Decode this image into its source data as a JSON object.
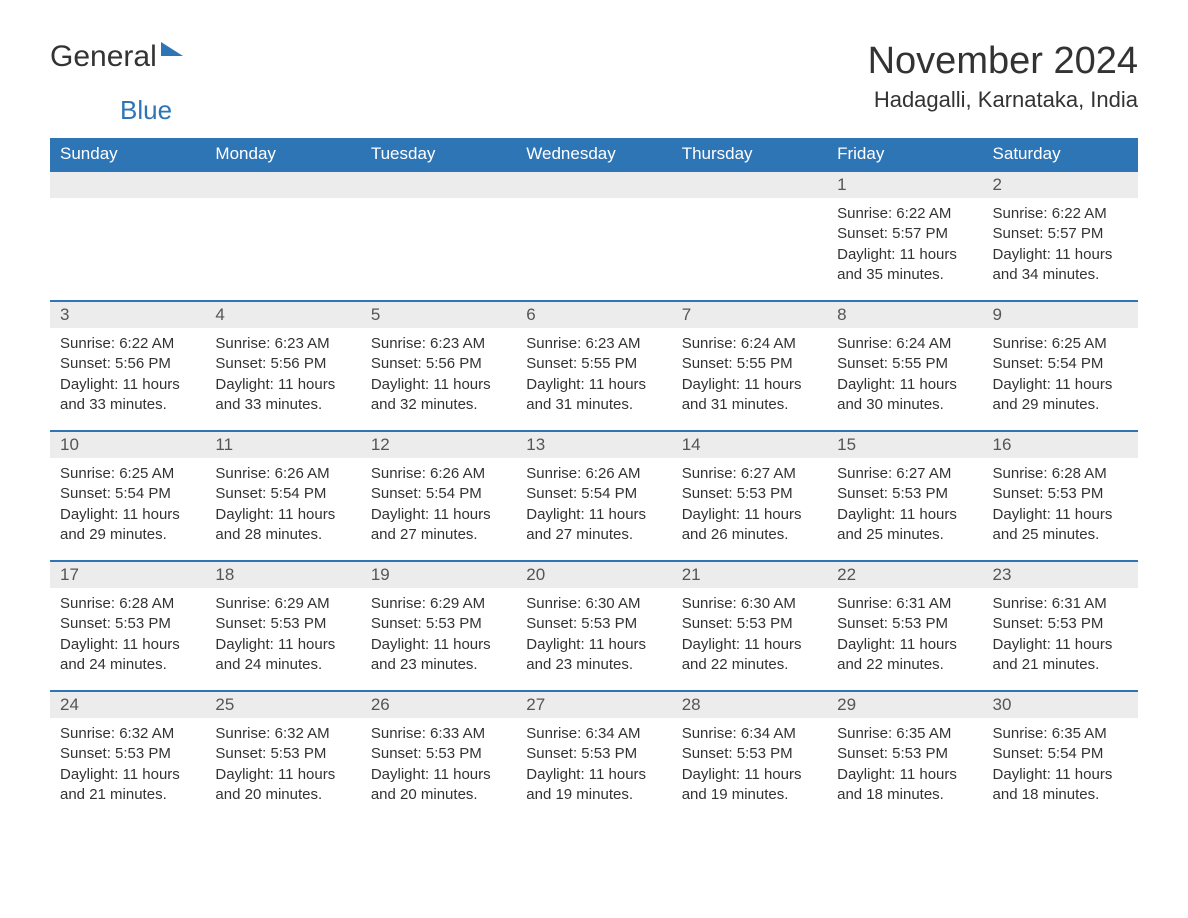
{
  "branding": {
    "logo_text_1": "General",
    "logo_text_2": "Blue"
  },
  "header": {
    "month_title": "November 2024",
    "location": "Hadagalli, Karnataka, India"
  },
  "styling": {
    "header_bg": "#2e75b6",
    "header_text": "#ffffff",
    "day_header_bg": "#ececec",
    "day_border_top": "#2e75b6",
    "body_bg": "#ffffff",
    "text_color": "#333333",
    "month_title_fontsize": 38,
    "location_fontsize": 22,
    "weekday_fontsize": 17,
    "day_number_fontsize": 17,
    "content_fontsize": 15
  },
  "weekdays": [
    "Sunday",
    "Monday",
    "Tuesday",
    "Wednesday",
    "Thursday",
    "Friday",
    "Saturday"
  ],
  "weeks": [
    [
      null,
      null,
      null,
      null,
      null,
      {
        "day": "1",
        "sunrise": "Sunrise: 6:22 AM",
        "sunset": "Sunset: 5:57 PM",
        "daylight1": "Daylight: 11 hours",
        "daylight2": "and 35 minutes."
      },
      {
        "day": "2",
        "sunrise": "Sunrise: 6:22 AM",
        "sunset": "Sunset: 5:57 PM",
        "daylight1": "Daylight: 11 hours",
        "daylight2": "and 34 minutes."
      }
    ],
    [
      {
        "day": "3",
        "sunrise": "Sunrise: 6:22 AM",
        "sunset": "Sunset: 5:56 PM",
        "daylight1": "Daylight: 11 hours",
        "daylight2": "and 33 minutes."
      },
      {
        "day": "4",
        "sunrise": "Sunrise: 6:23 AM",
        "sunset": "Sunset: 5:56 PM",
        "daylight1": "Daylight: 11 hours",
        "daylight2": "and 33 minutes."
      },
      {
        "day": "5",
        "sunrise": "Sunrise: 6:23 AM",
        "sunset": "Sunset: 5:56 PM",
        "daylight1": "Daylight: 11 hours",
        "daylight2": "and 32 minutes."
      },
      {
        "day": "6",
        "sunrise": "Sunrise: 6:23 AM",
        "sunset": "Sunset: 5:55 PM",
        "daylight1": "Daylight: 11 hours",
        "daylight2": "and 31 minutes."
      },
      {
        "day": "7",
        "sunrise": "Sunrise: 6:24 AM",
        "sunset": "Sunset: 5:55 PM",
        "daylight1": "Daylight: 11 hours",
        "daylight2": "and 31 minutes."
      },
      {
        "day": "8",
        "sunrise": "Sunrise: 6:24 AM",
        "sunset": "Sunset: 5:55 PM",
        "daylight1": "Daylight: 11 hours",
        "daylight2": "and 30 minutes."
      },
      {
        "day": "9",
        "sunrise": "Sunrise: 6:25 AM",
        "sunset": "Sunset: 5:54 PM",
        "daylight1": "Daylight: 11 hours",
        "daylight2": "and 29 minutes."
      }
    ],
    [
      {
        "day": "10",
        "sunrise": "Sunrise: 6:25 AM",
        "sunset": "Sunset: 5:54 PM",
        "daylight1": "Daylight: 11 hours",
        "daylight2": "and 29 minutes."
      },
      {
        "day": "11",
        "sunrise": "Sunrise: 6:26 AM",
        "sunset": "Sunset: 5:54 PM",
        "daylight1": "Daylight: 11 hours",
        "daylight2": "and 28 minutes."
      },
      {
        "day": "12",
        "sunrise": "Sunrise: 6:26 AM",
        "sunset": "Sunset: 5:54 PM",
        "daylight1": "Daylight: 11 hours",
        "daylight2": "and 27 minutes."
      },
      {
        "day": "13",
        "sunrise": "Sunrise: 6:26 AM",
        "sunset": "Sunset: 5:54 PM",
        "daylight1": "Daylight: 11 hours",
        "daylight2": "and 27 minutes."
      },
      {
        "day": "14",
        "sunrise": "Sunrise: 6:27 AM",
        "sunset": "Sunset: 5:53 PM",
        "daylight1": "Daylight: 11 hours",
        "daylight2": "and 26 minutes."
      },
      {
        "day": "15",
        "sunrise": "Sunrise: 6:27 AM",
        "sunset": "Sunset: 5:53 PM",
        "daylight1": "Daylight: 11 hours",
        "daylight2": "and 25 minutes."
      },
      {
        "day": "16",
        "sunrise": "Sunrise: 6:28 AM",
        "sunset": "Sunset: 5:53 PM",
        "daylight1": "Daylight: 11 hours",
        "daylight2": "and 25 minutes."
      }
    ],
    [
      {
        "day": "17",
        "sunrise": "Sunrise: 6:28 AM",
        "sunset": "Sunset: 5:53 PM",
        "daylight1": "Daylight: 11 hours",
        "daylight2": "and 24 minutes."
      },
      {
        "day": "18",
        "sunrise": "Sunrise: 6:29 AM",
        "sunset": "Sunset: 5:53 PM",
        "daylight1": "Daylight: 11 hours",
        "daylight2": "and 24 minutes."
      },
      {
        "day": "19",
        "sunrise": "Sunrise: 6:29 AM",
        "sunset": "Sunset: 5:53 PM",
        "daylight1": "Daylight: 11 hours",
        "daylight2": "and 23 minutes."
      },
      {
        "day": "20",
        "sunrise": "Sunrise: 6:30 AM",
        "sunset": "Sunset: 5:53 PM",
        "daylight1": "Daylight: 11 hours",
        "daylight2": "and 23 minutes."
      },
      {
        "day": "21",
        "sunrise": "Sunrise: 6:30 AM",
        "sunset": "Sunset: 5:53 PM",
        "daylight1": "Daylight: 11 hours",
        "daylight2": "and 22 minutes."
      },
      {
        "day": "22",
        "sunrise": "Sunrise: 6:31 AM",
        "sunset": "Sunset: 5:53 PM",
        "daylight1": "Daylight: 11 hours",
        "daylight2": "and 22 minutes."
      },
      {
        "day": "23",
        "sunrise": "Sunrise: 6:31 AM",
        "sunset": "Sunset: 5:53 PM",
        "daylight1": "Daylight: 11 hours",
        "daylight2": "and 21 minutes."
      }
    ],
    [
      {
        "day": "24",
        "sunrise": "Sunrise: 6:32 AM",
        "sunset": "Sunset: 5:53 PM",
        "daylight1": "Daylight: 11 hours",
        "daylight2": "and 21 minutes."
      },
      {
        "day": "25",
        "sunrise": "Sunrise: 6:32 AM",
        "sunset": "Sunset: 5:53 PM",
        "daylight1": "Daylight: 11 hours",
        "daylight2": "and 20 minutes."
      },
      {
        "day": "26",
        "sunrise": "Sunrise: 6:33 AM",
        "sunset": "Sunset: 5:53 PM",
        "daylight1": "Daylight: 11 hours",
        "daylight2": "and 20 minutes."
      },
      {
        "day": "27",
        "sunrise": "Sunrise: 6:34 AM",
        "sunset": "Sunset: 5:53 PM",
        "daylight1": "Daylight: 11 hours",
        "daylight2": "and 19 minutes."
      },
      {
        "day": "28",
        "sunrise": "Sunrise: 6:34 AM",
        "sunset": "Sunset: 5:53 PM",
        "daylight1": "Daylight: 11 hours",
        "daylight2": "and 19 minutes."
      },
      {
        "day": "29",
        "sunrise": "Sunrise: 6:35 AM",
        "sunset": "Sunset: 5:53 PM",
        "daylight1": "Daylight: 11 hours",
        "daylight2": "and 18 minutes."
      },
      {
        "day": "30",
        "sunrise": "Sunrise: 6:35 AM",
        "sunset": "Sunset: 5:54 PM",
        "daylight1": "Daylight: 11 hours",
        "daylight2": "and 18 minutes."
      }
    ]
  ]
}
